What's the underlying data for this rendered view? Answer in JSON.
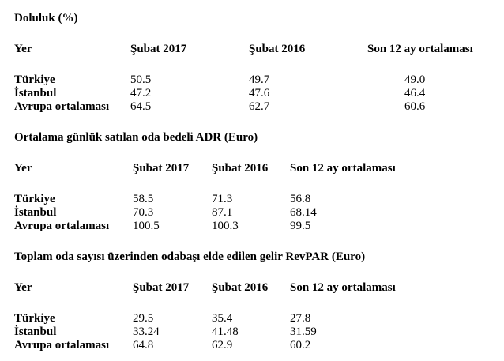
{
  "page": {
    "background_color": "#ffffff",
    "text_color": "#000000"
  },
  "sections": [
    {
      "title": "Doluluk (%)",
      "columns": [
        "Yer",
        "Şubat 2017",
        "Şubat 2016",
        "Son 12 ay ortalaması"
      ],
      "rows": [
        {
          "label": "Türkiye",
          "values": [
            "50.5",
            "49.7",
            "49.0"
          ]
        },
        {
          "label": "İstanbul",
          "values": [
            "47.2",
            "47.6",
            "46.4"
          ]
        },
        {
          "label": "Avrupa ortalaması",
          "values": [
            "64.5",
            "62.7",
            "60.6"
          ]
        }
      ]
    },
    {
      "title": "Ortalama günlük satılan oda bedeli ADR (Euro)",
      "columns": [
        "Yer",
        "Şubat 2017",
        "Şubat 2016",
        "Son 12 ay ortalaması"
      ],
      "rows": [
        {
          "label": "Türkiye",
          "values": [
            "58.5",
            "71.3",
            "56.8"
          ]
        },
        {
          "label": "İstanbul",
          "values": [
            "70.3",
            "87.1",
            "68.14"
          ]
        },
        {
          "label": "Avrupa ortalaması",
          "values": [
            "100.5",
            "100.3",
            "99.5"
          ]
        }
      ]
    },
    {
      "title": "Toplam oda sayısı üzerinden odabaşı elde edilen gelir RevPAR (Euro)",
      "columns": [
        "Yer",
        "Şubat 2017",
        "Şubat 2016",
        "Son 12 ay ortalaması"
      ],
      "rows": [
        {
          "label": "Türkiye",
          "values": [
            "29.5",
            "35.4",
            "27.8"
          ]
        },
        {
          "label": "İstanbul",
          "values": [
            "33.24",
            "41.48",
            "31.59"
          ]
        },
        {
          "label": "Avrupa ortalaması",
          "values": [
            "64.8",
            "62.9",
            "60.2"
          ]
        }
      ]
    }
  ]
}
